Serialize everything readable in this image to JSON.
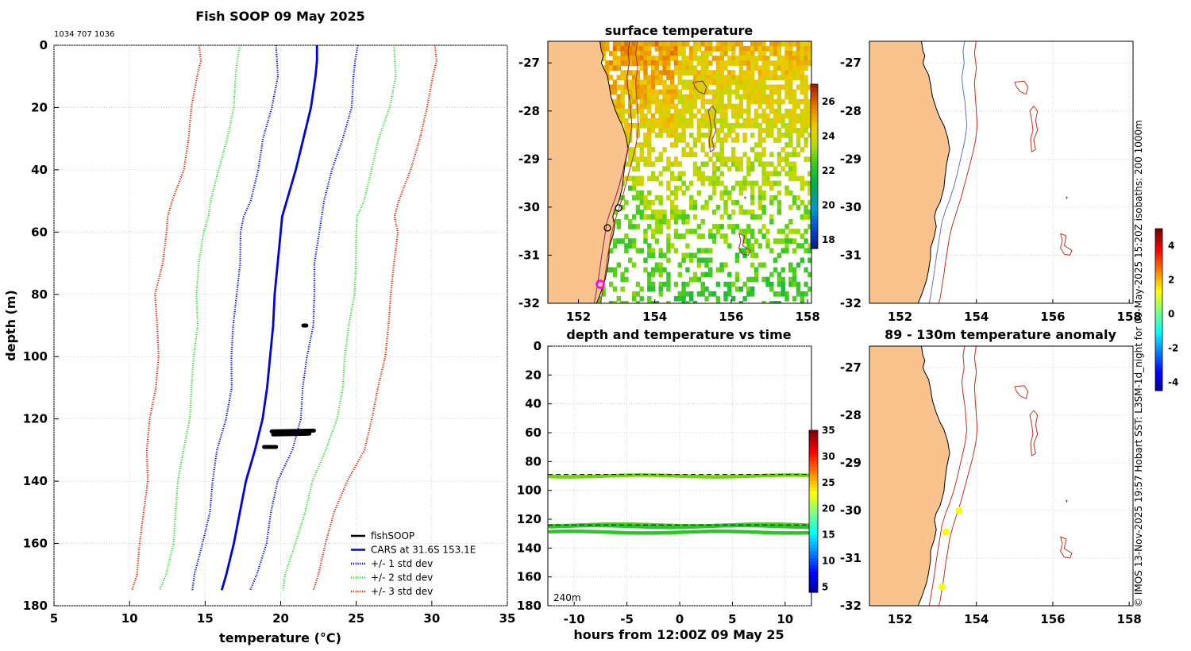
{
  "chart_data": [
    {
      "id": "profile",
      "type": "line",
      "title": "Fish SOOP 09 May 2025",
      "subtitle": "1034 707 1036",
      "xlabel": "temperature (°C)",
      "ylabel": "depth (m)",
      "xlim": [
        5,
        35
      ],
      "ylim": [
        0,
        180
      ],
      "xticks": [
        5,
        10,
        15,
        20,
        25,
        30,
        35
      ],
      "yticks": [
        0,
        20,
        40,
        60,
        80,
        100,
        120,
        140,
        160,
        180
      ],
      "depths": [
        0,
        5,
        10,
        20,
        30,
        40,
        50,
        55,
        60,
        70,
        80,
        90,
        100,
        110,
        120,
        130,
        140,
        150,
        160,
        170,
        175
      ],
      "mean": [
        22.4,
        22.4,
        22.3,
        22.0,
        21.5,
        21.0,
        20.4,
        20.1,
        20.0,
        19.8,
        19.6,
        19.5,
        19.3,
        19.1,
        18.8,
        18.3,
        17.7,
        17.3,
        16.9,
        16.4,
        16.1
      ],
      "std": [
        2.6,
        2.6,
        2.6,
        2.6,
        2.55,
        2.5,
        2.5,
        2.5,
        2.55,
        2.55,
        2.6,
        2.55,
        2.5,
        2.45,
        2.45,
        2.4,
        2.2,
        2.1,
        2.05,
        2.0,
        2.0
      ],
      "fishsoop": [
        {
          "depth": 90,
          "t0": 21.5,
          "t1": 21.7
        },
        {
          "depth": 124,
          "t0": 19.4,
          "t1": 22.2
        },
        {
          "depth": 125,
          "t0": 19.5,
          "t1": 21.9
        },
        {
          "depth": 129,
          "t0": 18.9,
          "t1": 19.7
        }
      ],
      "legend": [
        {
          "label": "fishSOOP",
          "color": "#000000",
          "style": "solid"
        },
        {
          "label": "CARS at 31.6S 153.1E",
          "color": "#0000e6",
          "style": "solid"
        },
        {
          "label": "+/- 1 std dev",
          "color": "#0000e6",
          "style": "dotted"
        },
        {
          "label": "+/- 2 std dev",
          "color": "#33dd33",
          "style": "dotted"
        },
        {
          "label": "+/- 3 std dev",
          "color": "#e02000",
          "style": "dotted"
        }
      ]
    },
    {
      "id": "sst-map",
      "type": "heatmap",
      "title": "surface temperature",
      "xticks": [
        152,
        154,
        156,
        158
      ],
      "yticks": [
        -27,
        -28,
        -29,
        -30,
        -31,
        -32
      ],
      "xlim": [
        151.2,
        158.1
      ],
      "ylim": [
        -32,
        -26.55
      ],
      "colorbar_ticks": [
        18,
        20,
        22,
        24,
        26
      ],
      "colorbar_range": [
        17.5,
        27
      ]
    },
    {
      "id": "depth-time",
      "type": "scatter",
      "title": "depth and temperature vs time",
      "xlabel": "hours from 12:00Z 09 May 25",
      "xlim": [
        -12.5,
        12.5
      ],
      "ylim": [
        0,
        180
      ],
      "xticks": [
        -10,
        -5,
        0,
        5,
        10
      ],
      "yticks": [
        0,
        20,
        40,
        60,
        80,
        100,
        120,
        140,
        160,
        180
      ],
      "colorbar_ticks": [
        5,
        10,
        15,
        20,
        25,
        30,
        35
      ],
      "colorbar_range": [
        4,
        35
      ],
      "bottom_depth_label": "240m",
      "dashed_depths": [
        89,
        124
      ],
      "tracks": [
        {
          "depth": 90,
          "temp": 22.0
        },
        {
          "depth": 124,
          "temp": 21.0
        },
        {
          "depth": 125,
          "temp": 19.5
        },
        {
          "depth": 129,
          "temp": 19.8
        }
      ]
    },
    {
      "id": "bathy-map",
      "type": "scatter",
      "xticks": [
        152,
        154,
        156,
        158
      ],
      "yticks": [
        -27,
        -28,
        -29,
        -30,
        -31,
        -32
      ],
      "xlim": [
        151.2,
        158.1
      ],
      "ylim": [
        -32,
        -26.55
      ]
    },
    {
      "id": "anomaly-map",
      "type": "scatter",
      "title": "89 - 130m temperature anomaly",
      "xticks": [
        152,
        154,
        156,
        158
      ],
      "yticks": [
        -27,
        -28,
        -29,
        -30,
        -31,
        -32
      ],
      "xlim": [
        151.2,
        158.1
      ],
      "ylim": [
        -32,
        -26.55
      ],
      "colorbar_ticks": [
        4,
        2,
        0,
        -2,
        -4
      ],
      "colorbar_range": [
        -4.5,
        5
      ],
      "points": [
        {
          "lon": 153.55,
          "lat": -30.0,
          "anomaly": 1.4
        },
        {
          "lon": 153.2,
          "lat": -30.45,
          "anomaly": 1.5
        },
        {
          "lon": 153.1,
          "lat": -31.6,
          "anomaly": 1.3
        }
      ]
    }
  ],
  "credit": "© IMOS 13-Nov-2025 19:57 Hobart SST: L3SM-1d_night for 09-May-2025 15:20Z isobaths: 200  1000m",
  "colors": {
    "land": "#f8c38c",
    "blue": "#0000e6",
    "green": "#33dd33",
    "red": "#e02000",
    "isobath200": "#6070c8",
    "isobath1000": "#c03020",
    "marker": "#ff00ff"
  }
}
